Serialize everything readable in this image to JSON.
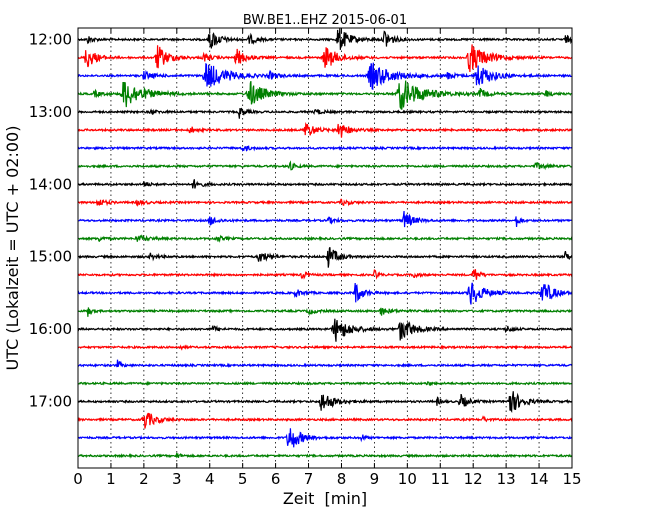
{
  "chart_data": {
    "type": "line",
    "title": "BW.BE1..EHZ 2015-06-01",
    "xlabel": "Zeit  [min]",
    "ylabel": "UTC (Lokalzeit = UTC + 02:00)",
    "xlim": [
      0,
      15
    ],
    "x_ticks": [
      "0",
      "1",
      "2",
      "3",
      "4",
      "5",
      "6",
      "7",
      "8",
      "9",
      "10",
      "11",
      "12",
      "13",
      "14",
      "15"
    ],
    "y_ticks": [
      "12:00",
      "13:00",
      "14:00",
      "15:00",
      "16:00",
      "17:00"
    ],
    "grid": true,
    "trace_colors": [
      "#000000",
      "#ff0000",
      "#0000ff",
      "#008000"
    ],
    "traces": [
      {
        "start": "12:00",
        "events": [
          [
            4.0,
            11,
            0.25
          ],
          [
            7.9,
            13,
            0.3
          ],
          [
            9.3,
            11,
            0.2
          ],
          [
            0.3,
            4,
            0.15
          ],
          [
            5.2,
            5,
            0.2
          ],
          [
            14.8,
            4,
            0.2
          ]
        ]
      },
      {
        "start": "12:15",
        "events": [
          [
            0.25,
            12,
            0.25
          ],
          [
            2.4,
            13,
            0.3
          ],
          [
            4.8,
            9,
            0.25
          ],
          [
            7.5,
            12,
            0.35
          ],
          [
            11.9,
            15,
            0.45
          ],
          [
            3.8,
            4,
            0.2
          ]
        ]
      },
      {
        "start": "12:30",
        "events": [
          [
            3.9,
            14,
            0.55
          ],
          [
            8.9,
            14,
            0.55
          ],
          [
            12.1,
            13,
            0.4
          ],
          [
            2.0,
            4,
            0.3
          ],
          [
            5.8,
            4,
            0.2
          ],
          [
            11.2,
            4,
            0.2
          ]
        ]
      },
      {
        "start": "12:45",
        "events": [
          [
            1.4,
            15,
            0.5
          ],
          [
            5.2,
            14,
            0.4
          ],
          [
            9.8,
            16,
            0.6
          ],
          [
            12.2,
            5,
            0.2
          ],
          [
            14.2,
            4,
            0.15
          ],
          [
            0.5,
            3,
            0.2
          ]
        ]
      },
      {
        "start": "13:00",
        "events": [
          [
            4.9,
            6,
            0.15
          ],
          [
            7.2,
            3,
            0.2
          ],
          [
            2.2,
            2,
            0.2
          ]
        ]
      },
      {
        "start": "13:15",
        "events": [
          [
            6.9,
            9,
            0.25
          ],
          [
            7.9,
            10,
            0.25
          ],
          [
            3.4,
            4,
            0.15
          ]
        ]
      },
      {
        "start": "13:30",
        "events": [
          [
            5.0,
            3,
            0.2
          ]
        ]
      },
      {
        "start": "13:45",
        "events": [
          [
            6.4,
            5,
            0.15
          ],
          [
            13.9,
            3,
            0.3
          ]
        ]
      },
      {
        "start": "14:00",
        "events": [
          [
            3.5,
            5,
            0.2
          ],
          [
            2.0,
            3,
            0.15
          ]
        ]
      },
      {
        "start": "14:15",
        "events": [
          [
            0.6,
            4,
            0.2
          ],
          [
            1.8,
            3,
            0.2
          ],
          [
            8.0,
            3,
            0.2
          ]
        ]
      },
      {
        "start": "14:30",
        "events": [
          [
            4.0,
            5,
            0.2
          ],
          [
            9.9,
            9,
            0.25
          ],
          [
            13.3,
            7,
            0.1
          ],
          [
            7.6,
            3,
            0.2
          ]
        ]
      },
      {
        "start": "14:45",
        "events": [
          [
            1.8,
            3,
            0.3
          ],
          [
            4.2,
            3,
            0.2
          ],
          [
            0.6,
            3,
            0.15
          ]
        ]
      },
      {
        "start": "15:00",
        "events": [
          [
            5.5,
            6,
            0.25
          ],
          [
            7.6,
            11,
            0.25
          ],
          [
            14.8,
            5,
            0.15
          ],
          [
            2.2,
            3,
            0.2
          ]
        ]
      },
      {
        "start": "15:15",
        "events": [
          [
            12.0,
            12,
            0.12
          ],
          [
            10.2,
            5,
            0.1
          ],
          [
            9.0,
            5,
            0.1
          ],
          [
            6.8,
            4,
            0.15
          ]
        ]
      },
      {
        "start": "15:30",
        "events": [
          [
            8.4,
            12,
            0.2
          ],
          [
            11.9,
            14,
            0.35
          ],
          [
            14.1,
            13,
            0.3
          ],
          [
            6.6,
            4,
            0.2
          ]
        ]
      },
      {
        "start": "15:45",
        "events": [
          [
            0.3,
            5,
            0.1
          ],
          [
            9.2,
            4,
            0.25
          ],
          [
            7.0,
            3,
            0.2
          ]
        ]
      },
      {
        "start": "16:00",
        "events": [
          [
            7.8,
            13,
            0.4
          ],
          [
            9.8,
            12,
            0.35
          ],
          [
            13.0,
            4,
            0.15
          ],
          [
            4.1,
            3,
            0.15
          ]
        ]
      },
      {
        "start": "16:15",
        "events": [
          [
            3.1,
            2,
            0.1
          ]
        ]
      },
      {
        "start": "16:30",
        "events": [
          [
            1.2,
            5,
            0.1
          ]
        ]
      },
      {
        "start": "16:45",
        "events": [
          [
            10.6,
            2,
            0.1
          ]
        ]
      },
      {
        "start": "17:00",
        "events": [
          [
            7.4,
            10,
            0.35
          ],
          [
            11.6,
            8,
            0.2
          ],
          [
            13.1,
            14,
            0.3
          ],
          [
            10.9,
            4,
            0.1
          ]
        ]
      },
      {
        "start": "17:15",
        "events": [
          [
            2.0,
            10,
            0.3
          ],
          [
            12.3,
            3,
            0.1
          ]
        ]
      },
      {
        "start": "17:30",
        "events": [
          [
            6.4,
            15,
            0.3
          ],
          [
            8.6,
            4,
            0.1
          ]
        ]
      },
      {
        "start": "17:45",
        "events": [
          [
            3.0,
            3,
            0.1
          ]
        ]
      }
    ]
  }
}
